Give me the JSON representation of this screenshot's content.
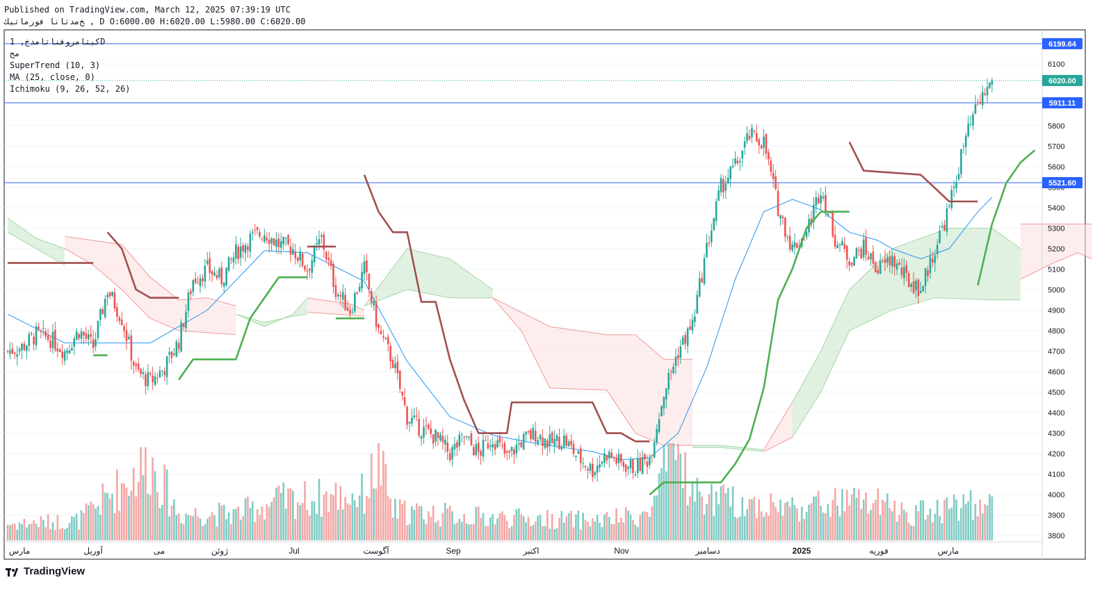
{
  "header": {
    "published": "Published on TradingView.com, March 12, 2025 07:39:19 UTC",
    "ohlc": "ﺦﻣﺪﺗﺎﻧﺎ ﻓﻮﺭﻣﺎﺗﻴﻚ , D O:6000.00 H:6020.00 L:5980.00 C:6020.00"
  },
  "legend": {
    "symbol": "ﻛﻴﺘﺎﻣﺮﻭﻓﻨﺎﺗﺎﻣﺪﺥ, 1D",
    "subtitle": "ﻣﺢ",
    "supertrend": "SuperTrend (10, 3)",
    "ma": "MA (25, close, 0)",
    "ichimoku": "Ichimoku (9, 26, 52, 26)"
  },
  "brand": {
    "name": "TradingView"
  },
  "colors": {
    "up": "#26a69a",
    "down": "#ef5350",
    "supertrend_up": "#4caf50",
    "supertrend_down": "#a0504f",
    "ma": "#2196f3",
    "hline": "#2962ff",
    "cloud_green": "#c8e6c9",
    "cloud_red": "#fcdede"
  },
  "chart_data": {
    "type": "candlestick",
    "y_range": [
      3770,
      6260
    ],
    "y_ticks": [
      3800,
      3900,
      4000,
      4100,
      4200,
      4300,
      4400,
      4500,
      4600,
      4700,
      4800,
      4900,
      5000,
      5100,
      5200,
      5300,
      5400,
      5500,
      5600,
      5700,
      5800,
      6100
    ],
    "x_labels": [
      "ﻣﺎﺭﺱ",
      "ﺁﻭﺭﻳﻞ",
      "ﻣﻰ",
      "ﮊﻭﺋﻦ",
      "Jul",
      "ﺁﮔﻮﺳﺖ",
      "Sep",
      "ﺍﻛﺘﺒﺮ",
      "Nov",
      "ﺩﺳﺎﻣﺒﺮ",
      "2025",
      "ﻓﻮﺭﻳﻪ",
      "ﻣﺎﺭﺱ"
    ],
    "price_labels": [
      {
        "value": 6199.64,
        "text": "6199.64",
        "kind": "hline"
      },
      {
        "value": 6020.0,
        "text": "6020.00",
        "kind": "last"
      },
      {
        "value": 5911.11,
        "text": "5911.11",
        "kind": "hline"
      },
      {
        "value": 5521.6,
        "text": "5521.60",
        "kind": "hline"
      }
    ],
    "close_anchors": [
      [
        0,
        4700
      ],
      [
        6,
        4720
      ],
      [
        12,
        4780
      ],
      [
        18,
        4760
      ],
      [
        24,
        4700
      ],
      [
        30,
        4800
      ],
      [
        36,
        4720
      ],
      [
        42,
        5000
      ],
      [
        48,
        4860
      ],
      [
        54,
        4600
      ],
      [
        60,
        4550
      ],
      [
        66,
        4620
      ],
      [
        72,
        4750
      ],
      [
        78,
        5050
      ],
      [
        84,
        5100
      ],
      [
        90,
        5050
      ],
      [
        96,
        5180
      ],
      [
        102,
        5250
      ],
      [
        108,
        5280
      ],
      [
        114,
        5220
      ],
      [
        120,
        5200
      ],
      [
        126,
        5100
      ],
      [
        132,
        5250
      ],
      [
        138,
        5000
      ],
      [
        144,
        4900
      ],
      [
        150,
        5100
      ],
      [
        156,
        4800
      ],
      [
        162,
        4650
      ],
      [
        168,
        4380
      ],
      [
        174,
        4320
      ],
      [
        180,
        4280
      ],
      [
        186,
        4200
      ],
      [
        192,
        4280
      ],
      [
        198,
        4200
      ],
      [
        204,
        4280
      ],
      [
        210,
        4180
      ],
      [
        216,
        4260
      ],
      [
        222,
        4300
      ],
      [
        228,
        4250
      ],
      [
        234,
        4270
      ],
      [
        240,
        4180
      ],
      [
        246,
        4120
      ],
      [
        252,
        4200
      ],
      [
        258,
        4150
      ],
      [
        264,
        4130
      ],
      [
        270,
        4180
      ],
      [
        276,
        4500
      ],
      [
        282,
        4700
      ],
      [
        288,
        4830
      ],
      [
        294,
        5200
      ],
      [
        300,
        5500
      ],
      [
        306,
        5600
      ],
      [
        312,
        5750
      ],
      [
        318,
        5720
      ],
      [
        324,
        5400
      ],
      [
        330,
        5200
      ],
      [
        336,
        5280
      ],
      [
        342,
        5500
      ],
      [
        348,
        5250
      ],
      [
        354,
        5150
      ],
      [
        360,
        5200
      ],
      [
        366,
        5100
      ],
      [
        372,
        5150
      ],
      [
        378,
        5050
      ],
      [
        384,
        5000
      ],
      [
        390,
        5200
      ],
      [
        396,
        5400
      ],
      [
        402,
        5700
      ],
      [
        408,
        5900
      ],
      [
        414,
        6020
      ]
    ],
    "volume_anchors": [
      [
        0,
        25
      ],
      [
        30,
        30
      ],
      [
        60,
        120
      ],
      [
        66,
        80
      ],
      [
        72,
        40
      ],
      [
        96,
        40
      ],
      [
        114,
        60
      ],
      [
        150,
        70
      ],
      [
        156,
        120
      ],
      [
        162,
        45
      ],
      [
        200,
        35
      ],
      [
        250,
        30
      ],
      [
        270,
        40
      ],
      [
        276,
        100
      ],
      [
        282,
        140
      ],
      [
        288,
        70
      ],
      [
        300,
        60
      ],
      [
        330,
        50
      ],
      [
        360,
        60
      ],
      [
        380,
        40
      ],
      [
        400,
        55
      ],
      [
        414,
        50
      ]
    ],
    "ma_anchors": [
      [
        0,
        4880
      ],
      [
        24,
        4740
      ],
      [
        60,
        4740
      ],
      [
        84,
        4900
      ],
      [
        108,
        5190
      ],
      [
        126,
        5180
      ],
      [
        150,
        5040
      ],
      [
        168,
        4650
      ],
      [
        186,
        4380
      ],
      [
        204,
        4290
      ],
      [
        222,
        4250
      ],
      [
        246,
        4210
      ],
      [
        258,
        4170
      ],
      [
        270,
        4180
      ],
      [
        282,
        4300
      ],
      [
        294,
        4620
      ],
      [
        306,
        5050
      ],
      [
        318,
        5380
      ],
      [
        330,
        5440
      ],
      [
        342,
        5390
      ],
      [
        354,
        5280
      ],
      [
        366,
        5240
      ],
      [
        372,
        5200
      ],
      [
        384,
        5150
      ],
      [
        396,
        5200
      ],
      [
        408,
        5380
      ],
      [
        414,
        5450
      ]
    ],
    "supertrend_segments": [
      {
        "trend": "down",
        "points": [
          [
            0,
            5130
          ],
          [
            36,
            5130
          ]
        ]
      },
      {
        "trend": "up",
        "points": [
          [
            36,
            4680
          ],
          [
            42,
            4680
          ]
        ]
      },
      {
        "trend": "down",
        "points": [
          [
            42,
            5280
          ],
          [
            48,
            5200
          ],
          [
            54,
            5000
          ],
          [
            60,
            4960
          ],
          [
            72,
            4960
          ]
        ]
      },
      {
        "trend": "up",
        "points": [
          [
            72,
            4560
          ],
          [
            78,
            4660
          ],
          [
            96,
            4660
          ],
          [
            102,
            4860
          ],
          [
            114,
            5060
          ],
          [
            126,
            5060
          ]
        ]
      },
      {
        "trend": "down",
        "points": [
          [
            126,
            5210
          ],
          [
            138,
            5210
          ]
        ]
      },
      {
        "trend": "up",
        "points": [
          [
            138,
            4860
          ],
          [
            150,
            4860
          ]
        ]
      },
      {
        "trend": "down",
        "points": [
          [
            150,
            5560
          ],
          [
            156,
            5380
          ],
          [
            162,
            5280
          ],
          [
            168,
            5280
          ],
          [
            174,
            4940
          ],
          [
            180,
            4940
          ],
          [
            186,
            4660
          ],
          [
            192,
            4460
          ],
          [
            198,
            4300
          ],
          [
            210,
            4300
          ],
          [
            212,
            4450
          ],
          [
            246,
            4450
          ],
          [
            252,
            4300
          ],
          [
            258,
            4300
          ],
          [
            264,
            4260
          ],
          [
            270,
            4260
          ]
        ]
      },
      {
        "trend": "up",
        "points": [
          [
            270,
            4000
          ],
          [
            276,
            4060
          ],
          [
            300,
            4060
          ],
          [
            306,
            4150
          ],
          [
            312,
            4270
          ],
          [
            318,
            4520
          ],
          [
            324,
            4950
          ],
          [
            330,
            5100
          ],
          [
            336,
            5300
          ],
          [
            342,
            5380
          ],
          [
            354,
            5380
          ]
        ]
      },
      {
        "trend": "down",
        "points": [
          [
            354,
            5720
          ],
          [
            360,
            5580
          ],
          [
            384,
            5560
          ],
          [
            396,
            5430
          ],
          [
            408,
            5430
          ]
        ]
      },
      {
        "trend": "up",
        "points": [
          [
            408,
            5020
          ],
          [
            414,
            5320
          ],
          [
            420,
            5520
          ],
          [
            426,
            5620
          ],
          [
            432,
            5680
          ]
        ]
      }
    ],
    "cloud_segments": [
      {
        "color": "green",
        "a": [
          [
            0,
            5350
          ],
          [
            12,
            5250
          ],
          [
            24,
            5200
          ]
        ],
        "b": [
          [
            0,
            5280
          ],
          [
            12,
            5200
          ],
          [
            24,
            5120
          ]
        ]
      },
      {
        "color": "red",
        "a": [
          [
            24,
            5260
          ],
          [
            36,
            5240
          ],
          [
            48,
            5220
          ],
          [
            60,
            5060
          ],
          [
            72,
            4950
          ],
          [
            84,
            4960
          ],
          [
            96,
            4920
          ]
        ],
        "b": [
          [
            24,
            5200
          ],
          [
            36,
            5120
          ],
          [
            48,
            5000
          ],
          [
            60,
            4860
          ],
          [
            72,
            4800
          ],
          [
            84,
            4790
          ],
          [
            96,
            4780
          ]
        ]
      },
      {
        "color": "green",
        "a": [
          [
            96,
            4880
          ],
          [
            108,
            4820
          ],
          [
            120,
            4880
          ],
          [
            126,
            4960
          ]
        ],
        "b": [
          [
            96,
            4880
          ],
          [
            108,
            4840
          ],
          [
            120,
            4870
          ],
          [
            126,
            4880
          ]
        ]
      },
      {
        "color": "red",
        "a": [
          [
            126,
            4960
          ],
          [
            144,
            4930
          ],
          [
            150,
            4900
          ]
        ],
        "b": [
          [
            126,
            4890
          ],
          [
            138,
            4880
          ],
          [
            150,
            4870
          ]
        ]
      },
      {
        "color": "green",
        "a": [
          [
            150,
            4920
          ],
          [
            168,
            5200
          ],
          [
            186,
            5150
          ],
          [
            204,
            5000
          ]
        ],
        "b": [
          [
            150,
            4920
          ],
          [
            168,
            5000
          ],
          [
            186,
            4960
          ],
          [
            204,
            4960
          ]
        ]
      },
      {
        "color": "red",
        "a": [
          [
            204,
            4960
          ],
          [
            228,
            4820
          ],
          [
            252,
            4780
          ],
          [
            264,
            4780
          ],
          [
            276,
            4660
          ],
          [
            288,
            4660
          ]
        ],
        "b": [
          [
            204,
            4960
          ],
          [
            216,
            4800
          ],
          [
            228,
            4520
          ],
          [
            252,
            4510
          ],
          [
            264,
            4300
          ],
          [
            276,
            4240
          ],
          [
            288,
            4240
          ]
        ]
      },
      {
        "color": "green",
        "a": [
          [
            288,
            4240
          ],
          [
            300,
            4240
          ],
          [
            318,
            4220
          ]
        ],
        "b": [
          [
            288,
            4230
          ],
          [
            300,
            4230
          ],
          [
            318,
            4210
          ]
        ]
      },
      {
        "color": "red",
        "a": [
          [
            318,
            4220
          ],
          [
            330,
            4450
          ]
        ],
        "b": [
          [
            318,
            4210
          ],
          [
            330,
            4280
          ]
        ]
      },
      {
        "color": "green",
        "a": [
          [
            330,
            4450
          ],
          [
            342,
            4700
          ],
          [
            354,
            5000
          ],
          [
            372,
            5200
          ],
          [
            396,
            5300
          ],
          [
            414,
            5300
          ],
          [
            426,
            5200
          ]
        ],
        "b": [
          [
            330,
            4280
          ],
          [
            342,
            4500
          ],
          [
            354,
            4800
          ],
          [
            372,
            4900
          ],
          [
            390,
            4960
          ],
          [
            414,
            4950
          ],
          [
            426,
            4950
          ]
        ]
      },
      {
        "color": "red",
        "a": [
          [
            426,
            5320
          ],
          [
            438,
            5320
          ],
          [
            456,
            5320
          ]
        ],
        "b": [
          [
            426,
            5050
          ],
          [
            438,
            5120
          ],
          [
            450,
            5180
          ],
          [
            456,
            5150
          ]
        ]
      }
    ]
  }
}
